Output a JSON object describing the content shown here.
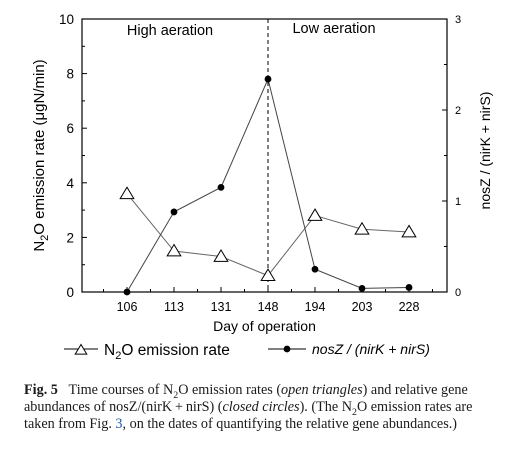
{
  "chart_data": {
    "type": "line",
    "categories": [
      "106",
      "113",
      "131",
      "148",
      "194",
      "203",
      "228"
    ],
    "xlabel": "Day of operation",
    "ylabel_left": "N2O emission rate (μgN/min)",
    "ylabel_right": "nosZ / (nirK + nirS)",
    "ylim_left": [
      0,
      10
    ],
    "ylim_right": [
      0,
      3
    ],
    "yticks_left": [
      "0",
      "2",
      "4",
      "6",
      "8",
      "10"
    ],
    "yticks_right": [
      "0",
      "1",
      "2",
      "3"
    ],
    "grid": false,
    "divider_after": "148",
    "regions": [
      "High aeration",
      "Low aeration"
    ],
    "series": [
      {
        "name": "N2O emission rate",
        "axis": "left",
        "marker": "open-triangle",
        "values": [
          3.6,
          1.5,
          1.3,
          0.6,
          2.8,
          2.3,
          2.2
        ]
      },
      {
        "name": "nosZ / (nirK + nirS)",
        "axis": "right",
        "marker": "closed-circle",
        "values": [
          0.0,
          0.88,
          1.15,
          2.34,
          0.25,
          0.04,
          0.05
        ]
      }
    ],
    "legend": {
      "placement": "bottom",
      "entry1_text": "N2O emission rate",
      "entry2_text": "nosZ / (nirK + nirS)"
    }
  },
  "caption": {
    "label": "Fig. 5",
    "text_before_link": "Time courses of N2O emission rates (open triangles) and relative gene abundances of nosZ/(nirK+nirS) (closed circles). (The N2O emission rates are taken from Fig.",
    "link": "3",
    "text_after_link": ", on the dates of quantifying the relative gene abundances.)"
  }
}
